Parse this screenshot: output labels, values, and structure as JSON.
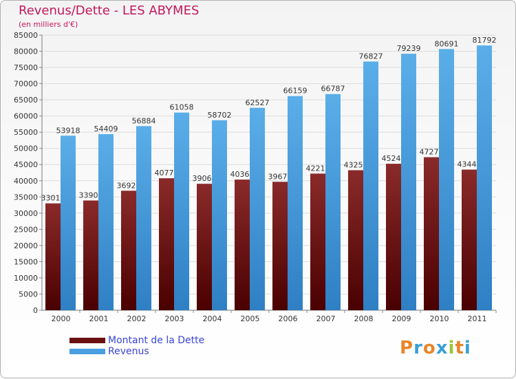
{
  "header": {
    "title": "Revenus/Dette - LES ABYMES",
    "subtitle": "(en milliers d'€)"
  },
  "legend": {
    "dette_label": "Montant de la Dette",
    "revenus_label": "Revenus"
  },
  "logo": {
    "text": "Proxiti",
    "letters": [
      "P",
      "r",
      "o",
      "x",
      "i",
      "t",
      "i"
    ]
  },
  "colors": {
    "dette": "#6b1010",
    "revenus": "#4a9fe0",
    "title": "#c2185b",
    "legend_text": "#3a45d8",
    "logo_letters": [
      "#e8862a",
      "#3aa0d8",
      "#e8862a",
      "#3aa0d8",
      "#9cc43a",
      "#e8862a",
      "#3aa0d8"
    ]
  },
  "chart_data": {
    "type": "bar",
    "categories": [
      "2000",
      "2001",
      "2002",
      "2003",
      "2004",
      "2005",
      "2006",
      "2007",
      "2008",
      "2009",
      "2010",
      "2011"
    ],
    "series": [
      {
        "name": "Montant de la Dette",
        "values": [
          33010,
          33900,
          36920,
          40770,
          39060,
          40360,
          39670,
          42210,
          43250,
          45240,
          47270,
          43440
        ],
        "labels": [
          "33010",
          "33900",
          "36920",
          "40770",
          "39060",
          "40360",
          "39670",
          "42210",
          "43250",
          "45240",
          "47270",
          "43440"
        ]
      },
      {
        "name": "Revenus",
        "values": [
          53918,
          54409,
          56884,
          61058,
          58702,
          62527,
          66159,
          66787,
          76827,
          79239,
          80691,
          81792
        ],
        "labels": [
          "53918",
          "54409",
          "56884",
          "61058",
          "58702",
          "62527",
          "66159",
          "66787",
          "76827",
          "79239",
          "80691",
          "81792"
        ]
      }
    ],
    "ylim": [
      0,
      85000
    ],
    "yticks": [
      0,
      5000,
      10000,
      15000,
      20000,
      25000,
      30000,
      35000,
      40000,
      45000,
      50000,
      55000,
      60000,
      65000,
      70000,
      75000,
      80000,
      85000
    ],
    "grid": true,
    "legend_position": "bottom-left"
  }
}
